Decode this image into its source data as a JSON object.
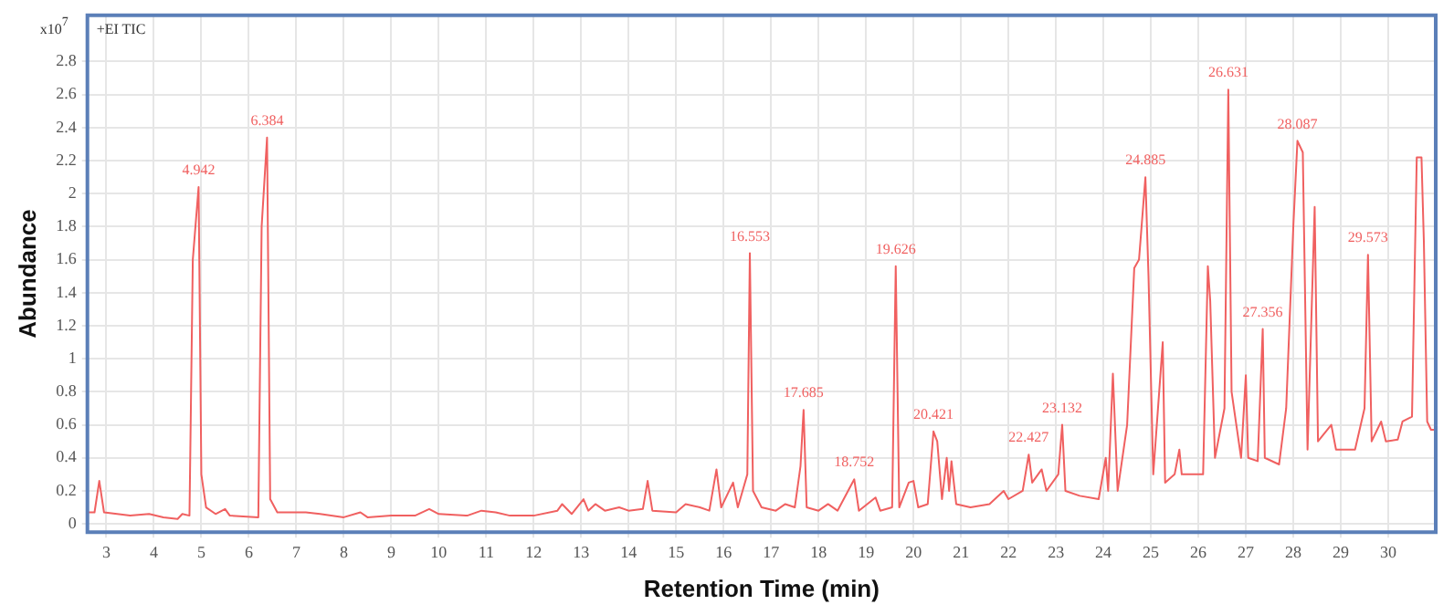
{
  "chart_data": {
    "type": "line",
    "xlabel": "Retention Time (min)",
    "ylabel": "Abundance",
    "xlim": [
      2.6,
      31
    ],
    "xticks": [
      3,
      4,
      5,
      6,
      7,
      8,
      9,
      10,
      11,
      12,
      13,
      14,
      15,
      16,
      17,
      18,
      19,
      20,
      21,
      22,
      23,
      24,
      25,
      26,
      27,
      28,
      29,
      30
    ],
    "ylim": [
      -0.05,
      3.08
    ],
    "yticks": [
      0,
      0.2,
      0.4,
      0.6,
      0.8,
      1,
      1.2,
      1.4,
      1.6,
      1.8,
      2,
      2.2,
      2.4,
      2.6,
      2.8
    ],
    "grid": true,
    "legend": false,
    "marker": "none",
    "line_style": "solid",
    "annotations": [
      "+EI TIC",
      "x10$^{7}$",
      {
        "text": "4.942",
        "x": 4.942,
        "y": 2.04
      },
      {
        "text": "6.384",
        "x": 6.384,
        "y": 2.34
      },
      {
        "text": "16.553",
        "x": 16.553,
        "y": 1.64
      },
      {
        "text": "17.685",
        "x": 17.685,
        "y": 0.69
      },
      {
        "text": "18.752",
        "x": 18.752,
        "y": 0.27
      },
      {
        "text": "19.626",
        "x": 19.626,
        "y": 1.56
      },
      {
        "text": "20.421",
        "x": 20.421,
        "y": 0.56
      },
      {
        "text": "22.427",
        "x": 22.427,
        "y": 0.42
      },
      {
        "text": "23.132",
        "x": 23.132,
        "y": 0.6
      },
      {
        "text": "24.885",
        "x": 24.885,
        "y": 2.1
      },
      {
        "text": "26.631",
        "x": 26.631,
        "y": 2.63
      },
      {
        "text": "27.356",
        "x": 27.356,
        "y": 1.18
      },
      {
        "text": "28.087",
        "x": 28.087,
        "y": 2.32
      },
      {
        "text": "29.573",
        "x": 29.573,
        "y": 1.63
      }
    ],
    "series": [
      {
        "color": "#f06060",
        "x": [
          2.6,
          2.75,
          2.85,
          2.95,
          3.5,
          3.9,
          4.2,
          4.5,
          4.6,
          4.75,
          4.82,
          4.942,
          5.0,
          5.1,
          5.3,
          5.5,
          5.6,
          6.2,
          6.27,
          6.384,
          6.45,
          6.6,
          7.2,
          7.5,
          8.0,
          8.35,
          8.5,
          9.0,
          9.5,
          9.8,
          10.0,
          10.6,
          10.9,
          11.2,
          11.5,
          12.0,
          12.5,
          12.6,
          12.8,
          13.05,
          13.15,
          13.3,
          13.5,
          13.8,
          14.0,
          14.3,
          14.4,
          14.5,
          15.0,
          15.2,
          15.5,
          15.7,
          15.85,
          15.95,
          16.2,
          16.3,
          16.4,
          16.5,
          16.553,
          16.62,
          16.8,
          17.1,
          17.3,
          17.5,
          17.62,
          17.685,
          17.75,
          18.0,
          18.2,
          18.4,
          18.752,
          18.85,
          19.2,
          19.3,
          19.55,
          19.626,
          19.7,
          19.9,
          20.0,
          20.1,
          20.3,
          20.421,
          20.5,
          20.6,
          20.7,
          20.75,
          20.8,
          20.9,
          21.2,
          21.6,
          21.9,
          22.0,
          22.3,
          22.427,
          22.5,
          22.7,
          22.8,
          23.05,
          23.132,
          23.2,
          23.5,
          23.9,
          24.05,
          24.1,
          24.2,
          24.3,
          24.5,
          24.65,
          24.75,
          24.885,
          24.95,
          25.05,
          25.25,
          25.3,
          25.5,
          25.6,
          25.65,
          26.1,
          26.2,
          26.25,
          26.35,
          26.55,
          26.631,
          26.7,
          26.8,
          26.9,
          27.0,
          27.05,
          27.25,
          27.356,
          27.4,
          27.7,
          27.85,
          28.0,
          28.087,
          28.2,
          28.3,
          28.45,
          28.52,
          28.8,
          28.9,
          29.3,
          29.5,
          29.573,
          29.65,
          29.85,
          29.95,
          30.2,
          30.3,
          30.5,
          30.6,
          30.7,
          30.75,
          30.82,
          30.9,
          31.0
        ],
        "values": [
          0.07,
          0.07,
          0.26,
          0.07,
          0.05,
          0.06,
          0.04,
          0.03,
          0.06,
          0.05,
          1.6,
          2.04,
          0.3,
          0.1,
          0.06,
          0.09,
          0.05,
          0.04,
          1.8,
          2.34,
          0.15,
          0.07,
          0.07,
          0.06,
          0.04,
          0.07,
          0.04,
          0.05,
          0.05,
          0.09,
          0.06,
          0.05,
          0.08,
          0.07,
          0.05,
          0.05,
          0.08,
          0.12,
          0.06,
          0.15,
          0.08,
          0.12,
          0.08,
          0.1,
          0.08,
          0.09,
          0.26,
          0.08,
          0.07,
          0.12,
          0.1,
          0.08,
          0.33,
          0.1,
          0.25,
          0.1,
          0.2,
          0.3,
          1.64,
          0.2,
          0.1,
          0.08,
          0.12,
          0.1,
          0.35,
          0.69,
          0.1,
          0.08,
          0.12,
          0.08,
          0.27,
          0.08,
          0.16,
          0.08,
          0.1,
          1.56,
          0.1,
          0.25,
          0.26,
          0.1,
          0.12,
          0.56,
          0.5,
          0.15,
          0.4,
          0.2,
          0.38,
          0.12,
          0.1,
          0.12,
          0.2,
          0.15,
          0.2,
          0.42,
          0.25,
          0.33,
          0.2,
          0.3,
          0.6,
          0.2,
          0.17,
          0.15,
          0.4,
          0.2,
          0.91,
          0.2,
          0.6,
          1.55,
          1.6,
          2.1,
          1.5,
          0.3,
          1.1,
          0.25,
          0.3,
          0.45,
          0.3,
          0.3,
          1.56,
          1.35,
          0.4,
          0.7,
          2.63,
          0.8,
          0.6,
          0.4,
          0.9,
          0.4,
          0.38,
          1.18,
          0.4,
          0.36,
          0.7,
          1.8,
          2.32,
          2.25,
          0.45,
          1.92,
          0.5,
          0.6,
          0.45,
          0.45,
          0.7,
          1.63,
          0.5,
          0.62,
          0.5,
          0.51,
          0.62,
          0.65,
          2.22,
          2.22,
          1.71,
          0.62,
          0.57,
          0.57
        ]
      }
    ]
  }
}
